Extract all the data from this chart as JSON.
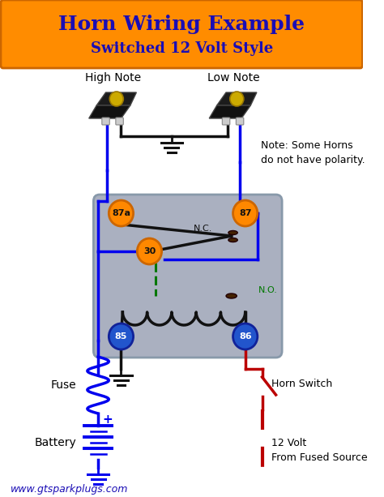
{
  "title": "Horn Wiring Example",
  "subtitle": "Switched 12 Volt Style",
  "title_color": "#1a0db5",
  "title_bg": "#FF8C00",
  "bg_color": "#ffffff",
  "website": "www.gtsparkplugs.com",
  "website_color": "#1a0db5",
  "note_text": "Note: Some Horns\ndo not have polarity.",
  "wire_blue": "#0000EE",
  "wire_red": "#BB0000",
  "wire_black": "#111111",
  "wire_green": "#007700",
  "relay_bg": "#aab0c0",
  "terminal_orange": "#FF8800",
  "terminal_blue": "#2255CC",
  "label_87a": "87a",
  "label_87": "87",
  "label_30": "30",
  "label_85": "85",
  "label_86": "86",
  "label_nc": "N.C.",
  "label_no": "N.O.",
  "label_high": "High Note",
  "label_low": "Low Note",
  "label_fuse": "Fuse",
  "label_battery": "Battery",
  "label_horn_switch": "Horn Switch",
  "label_12volt": "12 Volt\nFrom Fused Source",
  "figw": 4.74,
  "figh": 6.13,
  "dpi": 100
}
